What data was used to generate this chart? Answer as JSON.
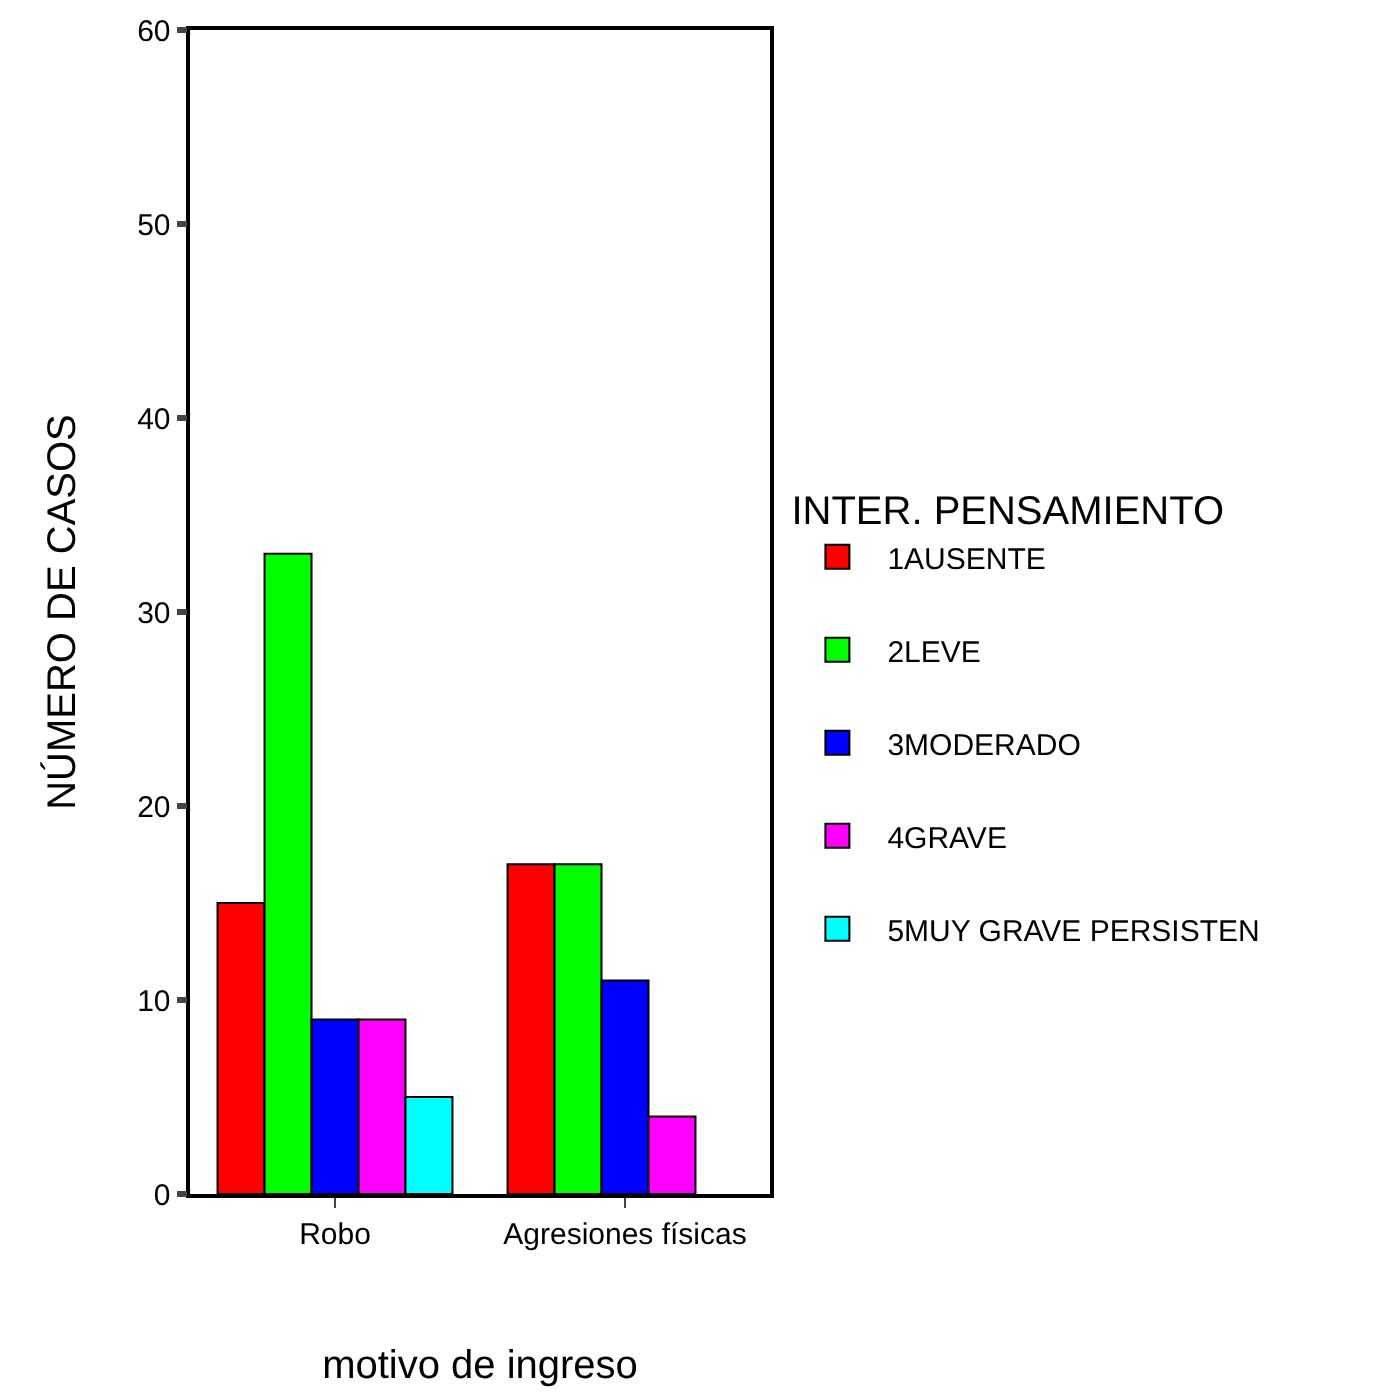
{
  "chart_data": {
    "type": "bar",
    "xlabel": "motivo de ingreso",
    "ylabel": "NÚMERO DE CASOS",
    "legend_title": "INTER. PENSAMIENTO",
    "categories": [
      "Robo",
      "Agresiones físicas"
    ],
    "series": [
      {
        "name": "1AUSENTE",
        "color": "#ff0000",
        "values": [
          15,
          17
        ]
      },
      {
        "name": "2LEVE",
        "color": "#00ff00",
        "values": [
          33,
          17
        ]
      },
      {
        "name": "3MODERADO",
        "color": "#0000ff",
        "values": [
          9,
          11
        ]
      },
      {
        "name": "4GRAVE",
        "color": "#ff00ff",
        "values": [
          9,
          4
        ]
      },
      {
        "name": "5MUY GRAVE PERSISTEN",
        "color": "#00ffff",
        "values": [
          5,
          null
        ]
      }
    ],
    "ylim": [
      0,
      60
    ],
    "yticks": [
      0,
      10,
      20,
      30,
      40,
      50,
      60
    ],
    "grid": false,
    "legend": "right"
  }
}
